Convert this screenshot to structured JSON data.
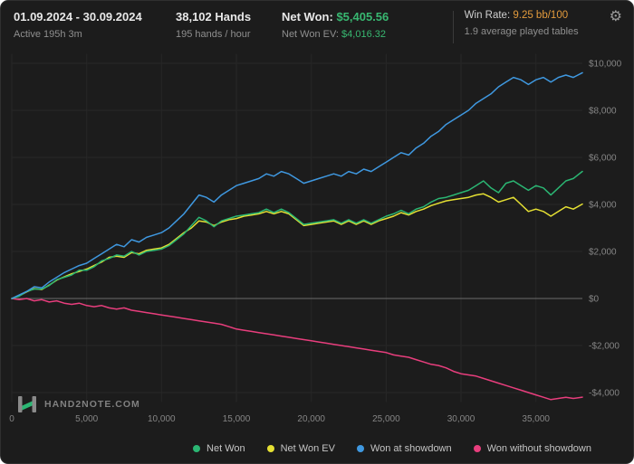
{
  "header": {
    "date_range": "01.09.2024 - 30.09.2024",
    "active_time": "Active 195h 3m",
    "hands": "38,102 Hands",
    "hands_per_hour": "195 hands / hour",
    "net_won_label": "Net Won:",
    "net_won_value": "$5,405.56",
    "net_won_ev_label": "Net Won  EV:",
    "net_won_ev_value": "$4,016.32",
    "win_rate_label": "Win Rate:",
    "win_rate_value": "9.25 bb/100",
    "avg_tables": "1.9 average played tables",
    "gear_icon": "gear"
  },
  "logo": {
    "text": "HAND2NOTE.COM"
  },
  "colors": {
    "background": "#1c1c1c",
    "text_bright": "#e8e8e8",
    "text_dim": "#8f8f8f",
    "value_green": "#38b871",
    "winrate_orange": "#e29a3c",
    "grid": "#272727",
    "zero_line": "#6b6b6b"
  },
  "chart_data": {
    "type": "line",
    "title": "",
    "xlabel": "",
    "ylabel": "",
    "grid": true,
    "legend_position": "bottom",
    "xlim": [
      0,
      38102
    ],
    "ylim": [
      -4400,
      10400
    ],
    "x_ticks": [
      {
        "v": 0,
        "label": "0"
      },
      {
        "v": 5000,
        "label": "5,000"
      },
      {
        "v": 10000,
        "label": "10,000"
      },
      {
        "v": 15000,
        "label": "15,000"
      },
      {
        "v": 20000,
        "label": "20,000"
      },
      {
        "v": 25000,
        "label": "25,000"
      },
      {
        "v": 30000,
        "label": "30,000"
      },
      {
        "v": 35000,
        "label": "35,000"
      }
    ],
    "y_ticks": [
      {
        "v": 10000,
        "label": "$10,000"
      },
      {
        "v": 8000,
        "label": "$8,000"
      },
      {
        "v": 6000,
        "label": "$6,000"
      },
      {
        "v": 4000,
        "label": "$4,000"
      },
      {
        "v": 2000,
        "label": "$2,000"
      },
      {
        "v": 0,
        "label": "$0"
      },
      {
        "v": -2000,
        "label": "-$2,000"
      },
      {
        "v": -4000,
        "label": "-$4,000"
      }
    ],
    "x": [
      0,
      500,
      1000,
      1500,
      2000,
      2500,
      3000,
      3500,
      4000,
      4500,
      5000,
      5500,
      6000,
      6500,
      7000,
      7500,
      8000,
      8500,
      9000,
      9500,
      10000,
      10500,
      11000,
      11500,
      12000,
      12500,
      13000,
      13500,
      14000,
      14500,
      15000,
      15500,
      16000,
      16500,
      17000,
      17500,
      18000,
      18500,
      19000,
      19500,
      20000,
      20500,
      21000,
      21500,
      22000,
      22500,
      23000,
      23500,
      24000,
      24500,
      25000,
      25500,
      26000,
      26500,
      27000,
      27500,
      28000,
      28500,
      29000,
      29500,
      30000,
      30500,
      31000,
      31500,
      32000,
      32500,
      33000,
      33500,
      34000,
      34500,
      35000,
      35500,
      36000,
      36500,
      37000,
      37500,
      38102
    ],
    "series": [
      {
        "name": "Net Won",
        "color": "#2bb673",
        "values": [
          0,
          100,
          300,
          400,
          400,
          550,
          800,
          900,
          1000,
          1200,
          1200,
          1350,
          1600,
          1700,
          1850,
          1800,
          2000,
          1850,
          2000,
          2050,
          2100,
          2250,
          2500,
          2750,
          3100,
          3450,
          3300,
          3050,
          3300,
          3400,
          3500,
          3550,
          3600,
          3650,
          3800,
          3650,
          3800,
          3650,
          3400,
          3150,
          3200,
          3250,
          3300,
          3350,
          3200,
          3350,
          3200,
          3350,
          3200,
          3350,
          3500,
          3600,
          3750,
          3600,
          3800,
          3900,
          4100,
          4250,
          4300,
          4400,
          4500,
          4600,
          4800,
          5000,
          4700,
          4500,
          4900,
          5000,
          4800,
          4600,
          4800,
          4700,
          4400,
          4700,
          5000,
          5100,
          5405
        ]
      },
      {
        "name": "Net Won  EV",
        "color": "#e5e033",
        "values": [
          0,
          120,
          280,
          420,
          380,
          570,
          780,
          920,
          1050,
          1150,
          1250,
          1400,
          1550,
          1750,
          1800,
          1750,
          1950,
          1900,
          2050,
          2100,
          2150,
          2300,
          2550,
          2800,
          3000,
          3300,
          3250,
          3100,
          3250,
          3350,
          3400,
          3500,
          3550,
          3600,
          3700,
          3600,
          3700,
          3600,
          3350,
          3100,
          3150,
          3200,
          3250,
          3300,
          3150,
          3300,
          3150,
          3300,
          3150,
          3300,
          3400,
          3500,
          3650,
          3550,
          3700,
          3800,
          3950,
          4050,
          4150,
          4200,
          4250,
          4300,
          4400,
          4450,
          4300,
          4100,
          4200,
          4300,
          4000,
          3700,
          3800,
          3700,
          3500,
          3700,
          3900,
          3800,
          4016
        ]
      },
      {
        "name": "Won at showdown",
        "color": "#3f98e0",
        "values": [
          0,
          150,
          300,
          500,
          450,
          700,
          900,
          1100,
          1250,
          1400,
          1500,
          1700,
          1900,
          2100,
          2300,
          2200,
          2500,
          2400,
          2600,
          2700,
          2800,
          3000,
          3300,
          3600,
          4000,
          4400,
          4300,
          4100,
          4400,
          4600,
          4800,
          4900,
          5000,
          5100,
          5300,
          5200,
          5400,
          5300,
          5100,
          4900,
          5000,
          5100,
          5200,
          5300,
          5200,
          5400,
          5300,
          5500,
          5400,
          5600,
          5800,
          6000,
          6200,
          6100,
          6400,
          6600,
          6900,
          7100,
          7400,
          7600,
          7800,
          8000,
          8300,
          8500,
          8700,
          9000,
          9200,
          9400,
          9300,
          9100,
          9300,
          9400,
          9200,
          9400,
          9500,
          9400,
          9600
        ]
      },
      {
        "name": "Won without showdown",
        "color": "#e83e7d",
        "values": [
          0,
          -50,
          0,
          -100,
          -50,
          -150,
          -100,
          -200,
          -250,
          -200,
          -300,
          -350,
          -300,
          -400,
          -450,
          -400,
          -500,
          -550,
          -600,
          -650,
          -700,
          -750,
          -800,
          -850,
          -900,
          -950,
          -1000,
          -1050,
          -1100,
          -1200,
          -1300,
          -1350,
          -1400,
          -1450,
          -1500,
          -1550,
          -1600,
          -1650,
          -1700,
          -1750,
          -1800,
          -1850,
          -1900,
          -1950,
          -2000,
          -2050,
          -2100,
          -2150,
          -2200,
          -2250,
          -2300,
          -2400,
          -2450,
          -2500,
          -2600,
          -2700,
          -2800,
          -2850,
          -2950,
          -3100,
          -3200,
          -3250,
          -3300,
          -3400,
          -3500,
          -3600,
          -3700,
          -3800,
          -3900,
          -4000,
          -4100,
          -4200,
          -4300,
          -4250,
          -4200,
          -4250,
          -4195
        ]
      }
    ]
  }
}
